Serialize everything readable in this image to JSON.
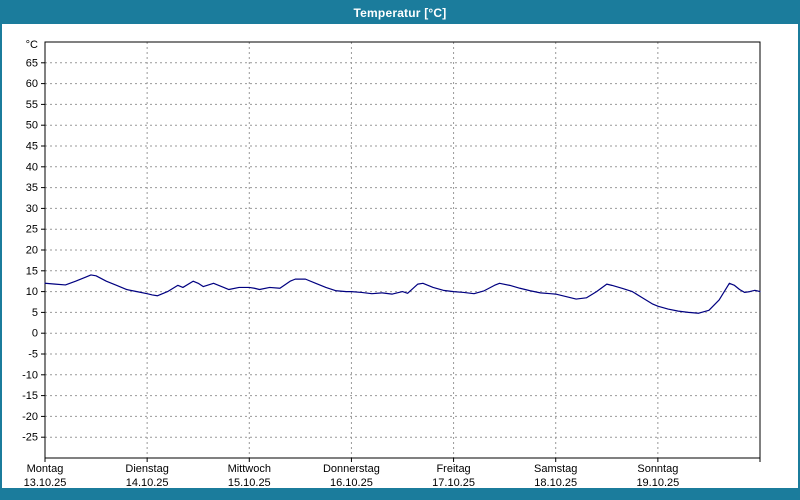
{
  "window": {
    "title": "Temperatur [°C]"
  },
  "colors": {
    "titlebar": "#1b7c9c",
    "window_background": "#ffffff",
    "plot_background": "#ffffff",
    "grid": "#999999",
    "axis": "#000000",
    "series_line": "#000080",
    "title_text": "#ffffff",
    "label_text": "#000000"
  },
  "chart_data": {
    "type": "line",
    "title": "Temperatur [°C]",
    "ylabel": "°C",
    "ylim": [
      -30,
      70
    ],
    "yticks": [
      65,
      60,
      55,
      50,
      45,
      40,
      35,
      30,
      25,
      20,
      15,
      10,
      5,
      0,
      -5,
      -10,
      -15,
      -20,
      -25
    ],
    "grid": true,
    "legend": "none",
    "x_unit": "days",
    "xlim": [
      0,
      7
    ],
    "days": [
      {
        "name": "Montag",
        "date": "13.10.25"
      },
      {
        "name": "Dienstag",
        "date": "14.10.25"
      },
      {
        "name": "Mittwoch",
        "date": "15.10.25"
      },
      {
        "name": "Donnerstag",
        "date": "16.10.25"
      },
      {
        "name": "Freitag",
        "date": "17.10.25"
      },
      {
        "name": "Samstag",
        "date": "18.10.25"
      },
      {
        "name": "Sonntag",
        "date": "19.10.25"
      }
    ],
    "series": [
      {
        "name": "Temperatur",
        "color": "#000080",
        "x": [
          0,
          0.1,
          0.2,
          0.3,
          0.4,
          0.45,
          0.5,
          0.6,
          0.7,
          0.8,
          0.9,
          1.0,
          1.05,
          1.1,
          1.2,
          1.3,
          1.35,
          1.45,
          1.5,
          1.55,
          1.65,
          1.75,
          1.8,
          1.9,
          2.0,
          2.05,
          2.1,
          2.2,
          2.3,
          2.4,
          2.45,
          2.55,
          2.65,
          2.75,
          2.85,
          2.95,
          3.0,
          3.1,
          3.2,
          3.3,
          3.4,
          3.5,
          3.55,
          3.65,
          3.7,
          3.8,
          3.9,
          4.0,
          4.1,
          4.2,
          4.3,
          4.4,
          4.45,
          4.55,
          4.65,
          4.75,
          4.85,
          4.95,
          5.0,
          5.1,
          5.2,
          5.3,
          5.4,
          5.5,
          5.55,
          5.65,
          5.75,
          5.85,
          5.95,
          6.0,
          6.1,
          6.2,
          6.3,
          6.4,
          6.5,
          6.6,
          6.7,
          6.75,
          6.8,
          6.85,
          6.9,
          6.95,
          7.0
        ],
        "y": [
          12,
          11.8,
          11.6,
          12.5,
          13.5,
          14,
          13.8,
          12.5,
          11.5,
          10.5,
          10,
          9.5,
          9.2,
          9,
          10,
          11.5,
          11,
          12.5,
          12,
          11.2,
          12,
          11,
          10.5,
          11,
          11,
          10.8,
          10.5,
          11,
          10.8,
          12.5,
          13,
          13,
          12,
          11,
          10.2,
          10,
          10,
          9.8,
          9.5,
          9.7,
          9.4,
          10,
          9.6,
          11.8,
          12,
          11,
          10.3,
          10,
          9.8,
          9.5,
          10.2,
          11.5,
          12,
          11.5,
          10.8,
          10.2,
          9.7,
          9.5,
          9.4,
          8.8,
          8.2,
          8.5,
          10,
          11.8,
          11.5,
          10.8,
          10,
          8.5,
          7,
          6.5,
          5.8,
          5.3,
          5,
          4.8,
          5.5,
          8,
          12,
          11.5,
          10.5,
          9.8,
          10,
          10.3,
          10
        ]
      }
    ]
  }
}
